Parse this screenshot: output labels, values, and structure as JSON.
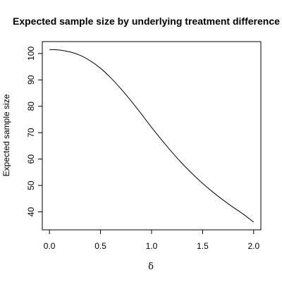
{
  "chart_data": {
    "type": "line",
    "title": "Expected sample size by underlying treatment difference",
    "xlabel": "δ",
    "ylabel": "Expected sample size",
    "xlim": [
      -0.07,
      2.07
    ],
    "ylim": [
      33.2,
      104.5
    ],
    "x_ticks": [
      0.0,
      0.5,
      1.0,
      1.5,
      2.0
    ],
    "x_tick_labels": [
      "0.0",
      "0.5",
      "1.0",
      "1.5",
      "2.0"
    ],
    "y_ticks": [
      40,
      50,
      60,
      70,
      80,
      90,
      100
    ],
    "y_tick_labels": [
      "40",
      "50",
      "60",
      "70",
      "80",
      "90",
      "100"
    ],
    "grid": false,
    "legend": "none",
    "series": [
      {
        "x": [
          0.0,
          0.1,
          0.2,
          0.3,
          0.4,
          0.5,
          0.6,
          0.7,
          0.8,
          0.9,
          1.0,
          1.1,
          1.2,
          1.3,
          1.4,
          1.5,
          1.6,
          1.7,
          1.8,
          1.9,
          2.0
        ],
        "y": [
          101.5,
          101.3,
          100.6,
          99.3,
          97.2,
          94.4,
          90.8,
          86.6,
          82.0,
          77.1,
          72.0,
          67.2,
          62.6,
          58.3,
          54.4,
          50.8,
          47.5,
          44.5,
          41.7,
          39.1,
          36.1
        ],
        "color": "#000000"
      }
    ]
  }
}
